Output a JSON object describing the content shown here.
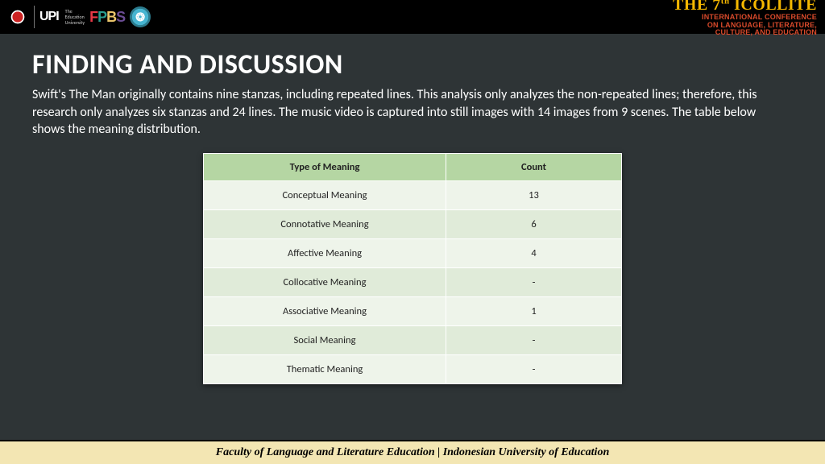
{
  "header": {
    "upi_text": "UPI",
    "upi_sub": "The\nEducation\nUniversity",
    "fpbs": {
      "f": "F",
      "p": "P",
      "b": "B",
      "s": "S"
    },
    "event_title_pre": "THE 7",
    "event_title_sup": "th",
    "event_title_post": " ICOLLITE",
    "event_sub1": "INTERNATIONAL CONFERENCE",
    "event_sub2": "ON LANGUAGE, LITERATURE,",
    "event_sub3": "CULTURE, AND EDUCATION"
  },
  "content": {
    "heading": "FINDING AND DISCUSSION",
    "body": "Swift's The Man originally contains nine stanzas, including repeated lines. This analysis only analyzes the non-repeated lines; therefore, this research only analyzes six stanzas and 24 lines. The music video is captured into still images with 14 images from 9 scenes. The table below shows the meaning distribution."
  },
  "table": {
    "columns": [
      "Type of Meaning",
      "Count"
    ],
    "rows": [
      [
        "Conceptual Meaning",
        "13"
      ],
      [
        "Connotative Meaning",
        "6"
      ],
      [
        "Affective Meaning",
        "4"
      ],
      [
        "Collocative Meaning",
        "-"
      ],
      [
        "Associative Meaning",
        "1"
      ],
      [
        "Social Meaning",
        "-"
      ],
      [
        "Thematic Meaning",
        "-"
      ]
    ],
    "header_bg": "#b5d6a3",
    "row_odd_bg": "#eef4ea",
    "row_even_bg": "#e0ebd9",
    "font_size": 12.5
  },
  "footer": {
    "text": "Faculty of Language and Literature Education | Indonesian University of Education",
    "bg": "#f3e6b3"
  },
  "colors": {
    "page_bg": "#2e3436",
    "topbar_bg": "#000000",
    "event_title": "#f5b800",
    "event_sub": "#d94a2b",
    "text": "#ffffff"
  }
}
